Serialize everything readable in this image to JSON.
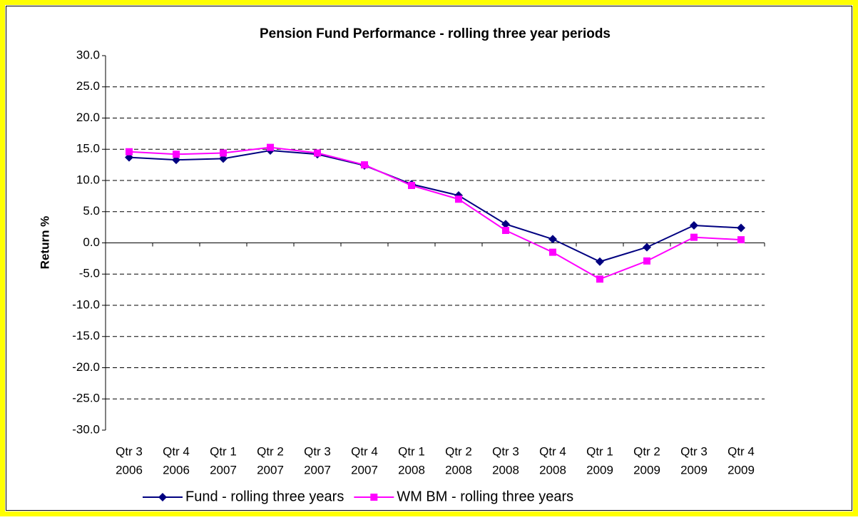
{
  "chart_data": {
    "type": "line",
    "title": "Pension Fund Performance - rolling three year periods",
    "y_label": "Return %",
    "categories": [
      [
        "Qtr 3",
        "2006"
      ],
      [
        "Qtr 4",
        "2006"
      ],
      [
        "Qtr 1",
        "2007"
      ],
      [
        "Qtr 2",
        "2007"
      ],
      [
        "Qtr 3",
        "2007"
      ],
      [
        "Qtr 4",
        "2007"
      ],
      [
        "Qtr 1",
        "2008"
      ],
      [
        "Qtr 2",
        "2008"
      ],
      [
        "Qtr 3",
        "2008"
      ],
      [
        "Qtr 4",
        "2008"
      ],
      [
        "Qtr 1",
        "2009"
      ],
      [
        "Qtr 2",
        "2009"
      ],
      [
        "Qtr 3",
        "2009"
      ],
      [
        "Qtr 4",
        "2009"
      ]
    ],
    "series": [
      {
        "name": "Fund - rolling three years",
        "color": "#000080",
        "marker": "diamond",
        "values": [
          13.7,
          13.3,
          13.5,
          14.8,
          14.2,
          12.4,
          9.4,
          7.6,
          3.0,
          0.6,
          -3.0,
          -0.7,
          2.8,
          2.4
        ]
      },
      {
        "name": "WM BM - rolling three years",
        "color": "#ff00ff",
        "marker": "square",
        "values": [
          14.6,
          14.2,
          14.4,
          15.3,
          14.4,
          12.5,
          9.2,
          7.0,
          2.0,
          -1.5,
          -5.8,
          -2.9,
          0.9,
          0.5
        ]
      }
    ],
    "ylim": [
      -30,
      30
    ],
    "yticks": [
      {
        "value": 30,
        "label": "30.0"
      },
      {
        "value": 25,
        "label": "25.0"
      },
      {
        "value": 20,
        "label": "20.0"
      },
      {
        "value": 15,
        "label": "15.0"
      },
      {
        "value": 10,
        "label": "10.0"
      },
      {
        "value": 5,
        "label": "5.0"
      },
      {
        "value": 0,
        "label": "0.0"
      },
      {
        "value": -5,
        "label": "-5.0"
      },
      {
        "value": -10,
        "label": "-10.0"
      },
      {
        "value": -15,
        "label": "-15.0"
      },
      {
        "value": -20,
        "label": "-20.0"
      },
      {
        "value": -25,
        "label": "-25.0"
      },
      {
        "value": -30,
        "label": "-30.0"
      }
    ],
    "grid": true,
    "legend": "bottom"
  }
}
